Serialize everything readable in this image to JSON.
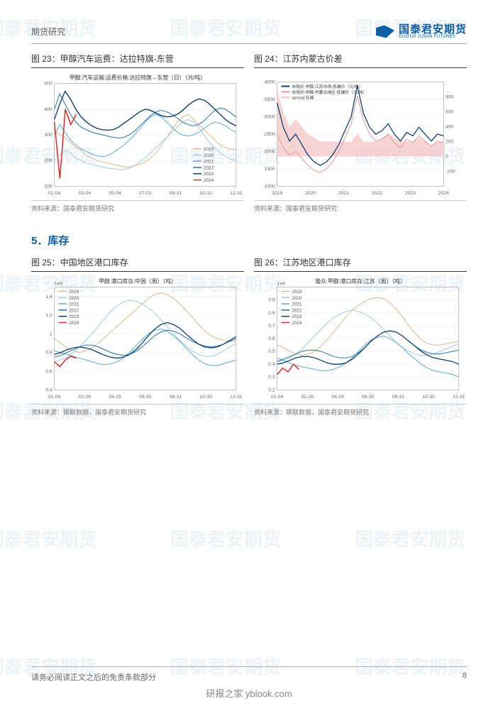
{
  "header": {
    "label": "期货研究",
    "brand_cn": "国泰君安期货",
    "brand_en": "GUOTAI JUNAN FUTURES"
  },
  "section_heading": "5．库存",
  "footer": {
    "disclaimer": "请务必阅读正文之后的免责条款部分",
    "page_num": "8",
    "tag": "研报之家 yblook.com"
  },
  "watermark_text": "国泰君安期货",
  "charts": {
    "c23": {
      "caption": "图 23：甲醇汽车运费：达拉特旗-东营",
      "subtitle": "甲醇:汽车运输:运费价格:达拉特旗→东营（日）（元/吨）",
      "source": "资料来源：国泰君安期货研究",
      "type": "line",
      "background_color": "#ffffff",
      "grid_color": "#e8e8e8",
      "axis_color": "#666",
      "axis_fontsize": 7,
      "title_fontsize": 8,
      "ylim": [
        100,
        500
      ],
      "ytick_step": 100,
      "x_labels": [
        "01-04",
        "03-04",
        "05-04",
        "07-02",
        "08-31",
        "10-31",
        "12-31"
      ],
      "legend": [
        "2019",
        "2020",
        "2021",
        "2022",
        "2023",
        "2024"
      ],
      "legend_colors": [
        "#dcb68c",
        "#a0c8e6",
        "#58a8de",
        "#1f6fb0",
        "#0a3c70",
        "#e03030"
      ],
      "series": [
        {
          "name": "2019",
          "color": "#dcb68c",
          "width": 1,
          "y": [
            320,
            300,
            290,
            270,
            250,
            240,
            220,
            210,
            200,
            195,
            190,
            185,
            180,
            175,
            175,
            180,
            185,
            195,
            210,
            230,
            260,
            290,
            320,
            350,
            370,
            380,
            360,
            340,
            320,
            300,
            280,
            260,
            250,
            245,
            240
          ]
        },
        {
          "name": "2020",
          "color": "#a0c8e6",
          "width": 1,
          "y": [
            200,
            220,
            240,
            230,
            210,
            200,
            190,
            185,
            180,
            175,
            170,
            168,
            165,
            165,
            170,
            180,
            195,
            210,
            230,
            250,
            270,
            290,
            310,
            330,
            350,
            360,
            350,
            330,
            300,
            270,
            250,
            230,
            215,
            205,
            200
          ]
        },
        {
          "name": "2021",
          "color": "#58a8de",
          "width": 1,
          "y": [
            300,
            340,
            310,
            280,
            260,
            245,
            235,
            225,
            218,
            215,
            220,
            230,
            245,
            260,
            280,
            300,
            325,
            350,
            370,
            380,
            370,
            350,
            330,
            310,
            300,
            295,
            300,
            310,
            325,
            340,
            350,
            345,
            335,
            320,
            310
          ]
        },
        {
          "name": "2022",
          "color": "#1f6fb0",
          "width": 1,
          "y": [
            400,
            460,
            420,
            380,
            350,
            330,
            320,
            310,
            305,
            300,
            295,
            290,
            288,
            290,
            300,
            315,
            335,
            355,
            375,
            390,
            395,
            390,
            380,
            365,
            350,
            340,
            335,
            340,
            355,
            375,
            395,
            405,
            400,
            385,
            370
          ]
        },
        {
          "name": "2023",
          "color": "#0a3c70",
          "width": 1.4,
          "y": [
            360,
            420,
            470,
            440,
            400,
            370,
            350,
            335,
            325,
            320,
            318,
            320,
            330,
            345,
            360,
            375,
            390,
            400,
            395,
            385,
            375,
            370,
            372,
            380,
            395,
            415,
            430,
            440,
            435,
            420,
            400,
            380,
            360,
            345,
            335
          ]
        },
        {
          "name": "2024",
          "color": "#e03030",
          "width": 1.6,
          "y": [
            350,
            130,
            400,
            340,
            380
          ]
        }
      ]
    },
    "c24": {
      "caption": "图 24：江苏内蒙古价差",
      "subtitle": "",
      "source": "资料来源：国泰君安期货研究",
      "type": "dual-axis-line-area",
      "background_color": "#ffffff",
      "grid_color": "#e8e8e8",
      "axis_color": "#666",
      "axis_fontsize": 7,
      "ylim_left": [
        1000,
        4000
      ],
      "ytick_left_step": 500,
      "ylim_right": [
        -400,
        1000
      ],
      "ytick_right": [
        -200,
        0,
        200,
        400,
        600,
        800
      ],
      "x_labels": [
        "2019",
        "2020",
        "2021",
        "2022",
        "2023",
        "2024"
      ],
      "legend": [
        {
          "label": "市场价:甲醇:江苏市场:低端价（元/吨）",
          "color": "#0a3c70"
        },
        {
          "label": "市场价:甲醇:内蒙古地区:低端价（元/吨）",
          "color": "#e09a9a"
        },
        {
          "label": "spread:右轴",
          "color": "#f4c2c2"
        }
      ],
      "spread_fill": "#f4c2c2",
      "series_left": [
        {
          "name": "js",
          "color": "#0a3c70",
          "width": 1.3,
          "y": [
            3400,
            2700,
            2300,
            2500,
            2200,
            1900,
            1700,
            1600,
            1700,
            1900,
            2200,
            2600,
            3000,
            3900,
            3100,
            2700,
            2500,
            2600,
            2800,
            2500,
            2300,
            2550,
            2450,
            2700,
            2500,
            2300,
            2500,
            2450
          ]
        },
        {
          "name": "nm",
          "color": "#e09a9a",
          "width": 1,
          "y": [
            2500,
            2100,
            1900,
            2000,
            1800,
            1600,
            1450,
            1400,
            1500,
            1700,
            2000,
            2400,
            2800,
            3600,
            2900,
            2500,
            2300,
            2350,
            2500,
            2250,
            2100,
            2350,
            2250,
            2450,
            2300,
            2150,
            2300,
            2250
          ]
        }
      ],
      "spread_y": [
        900,
        600,
        400,
        500,
        400,
        300,
        250,
        200,
        200,
        200,
        200,
        200,
        200,
        300,
        200,
        200,
        200,
        250,
        300,
        250,
        200,
        200,
        200,
        250,
        200,
        150,
        200,
        200
      ]
    },
    "c25": {
      "caption": "图 25：中国地区港口库存",
      "subtitle": "甲醇:港口库存:中国（周）（吨）",
      "source": "资料来源：钢联数据，国泰君安期货研究",
      "type": "line",
      "background_color": "#ffffff",
      "grid_color": "#e8e8e8",
      "axis_color": "#666",
      "axis_fontsize": 7,
      "scale_label": "1e6",
      "ylim": [
        0.4,
        1.5
      ],
      "yticks": [
        0.4,
        0.6,
        0.8,
        1.0,
        1.2,
        1.4
      ],
      "x_labels": [
        "01-04",
        "02-26",
        "04-29",
        "06-30",
        "08-31",
        "10-30",
        "12-31"
      ],
      "legend": [
        "2019",
        "2020",
        "2021",
        "2022",
        "2023",
        "2024"
      ],
      "legend_colors": [
        "#dcb68c",
        "#a0c8e6",
        "#58a8de",
        "#1f6fb0",
        "#0a3c70",
        "#e03030"
      ],
      "series": [
        {
          "name": "2019",
          "color": "#dcb68c",
          "width": 1,
          "y": [
            0.95,
            0.9,
            0.85,
            0.82,
            0.8,
            0.82,
            0.85,
            0.9,
            0.96,
            1.02,
            1.08,
            1.14,
            1.2,
            1.26,
            1.32,
            1.38,
            1.42,
            1.44,
            1.42,
            1.38,
            1.32,
            1.25,
            1.18,
            1.1,
            1.03,
            0.98,
            0.95,
            0.93,
            0.92,
            0.92
          ]
        },
        {
          "name": "2020",
          "color": "#a0c8e6",
          "width": 1,
          "y": [
            0.7,
            0.72,
            0.75,
            0.8,
            0.86,
            0.93,
            1.0,
            1.08,
            1.16,
            1.24,
            1.3,
            1.34,
            1.36,
            1.35,
            1.32,
            1.28,
            1.22,
            1.15,
            1.08,
            1.0,
            0.93,
            0.87,
            0.82,
            0.78,
            0.76,
            0.76,
            0.78,
            0.82,
            0.86,
            0.9
          ]
        },
        {
          "name": "2021",
          "color": "#58a8de",
          "width": 1,
          "y": [
            0.82,
            0.8,
            0.78,
            0.76,
            0.74,
            0.72,
            0.7,
            0.68,
            0.67,
            0.68,
            0.7,
            0.74,
            0.8,
            0.87,
            0.94,
            1.0,
            1.04,
            1.05,
            1.03,
            0.98,
            0.92,
            0.85,
            0.78,
            0.72,
            0.68,
            0.66,
            0.66,
            0.68,
            0.7,
            0.72
          ]
        },
        {
          "name": "2022",
          "color": "#1f6fb0",
          "width": 1,
          "y": [
            0.75,
            0.77,
            0.8,
            0.83,
            0.86,
            0.88,
            0.88,
            0.86,
            0.83,
            0.8,
            0.78,
            0.77,
            0.78,
            0.81,
            0.86,
            0.92,
            0.98,
            1.02,
            1.04,
            1.03,
            1.0,
            0.96,
            0.92,
            0.89,
            0.87,
            0.86,
            0.87,
            0.89,
            0.92,
            0.95
          ]
        },
        {
          "name": "2023",
          "color": "#0a3c70",
          "width": 1.3,
          "y": [
            0.78,
            0.8,
            0.83,
            0.85,
            0.86,
            0.85,
            0.83,
            0.8,
            0.77,
            0.75,
            0.74,
            0.75,
            0.78,
            0.83,
            0.9,
            0.98,
            1.05,
            1.1,
            1.12,
            1.1,
            1.06,
            1.0,
            0.94,
            0.89,
            0.86,
            0.85,
            0.86,
            0.89,
            0.93,
            0.97
          ]
        },
        {
          "name": "2024",
          "color": "#e03030",
          "width": 1.6,
          "y": [
            0.7,
            0.65,
            0.72,
            0.76,
            0.74
          ]
        }
      ]
    },
    "c26": {
      "caption": "图 26：江苏地区港口库存",
      "subtitle": "隆众:甲醇:港口库存:江苏（周）（吨）",
      "source": "资料来源：钢联数据，国泰君安期货研究",
      "type": "line",
      "background_color": "#ffffff",
      "grid_color": "#e8e8e8",
      "axis_color": "#666",
      "axis_fontsize": 7,
      "scale_label": "1e6",
      "ylim": [
        0.2,
        1.0
      ],
      "yticks": [
        0.2,
        0.3,
        0.4,
        0.5,
        0.6,
        0.7,
        0.8,
        0.9
      ],
      "x_labels": [
        "01-04",
        "02-26",
        "04-29",
        "06-30",
        "08-31",
        "10-30",
        "12-31"
      ],
      "legend": [
        "2019",
        "2020",
        "2021",
        "2022",
        "2023",
        "2024"
      ],
      "legend_colors": [
        "#dcb68c",
        "#a0c8e6",
        "#58a8de",
        "#1f6fb0",
        "#0a3c70",
        "#e03030"
      ],
      "series": [
        {
          "name": "2019",
          "color": "#dcb68c",
          "width": 1,
          "y": [
            0.55,
            0.53,
            0.5,
            0.48,
            0.47,
            0.48,
            0.5,
            0.54,
            0.59,
            0.65,
            0.71,
            0.77,
            0.82,
            0.86,
            0.89,
            0.91,
            0.92,
            0.91,
            0.88,
            0.83,
            0.77,
            0.7,
            0.64,
            0.59,
            0.56,
            0.55,
            0.55,
            0.56,
            0.57,
            0.58
          ]
        },
        {
          "name": "2020",
          "color": "#a0c8e6",
          "width": 1,
          "y": [
            0.42,
            0.43,
            0.45,
            0.48,
            0.52,
            0.57,
            0.62,
            0.67,
            0.72,
            0.76,
            0.79,
            0.81,
            0.82,
            0.81,
            0.79,
            0.76,
            0.72,
            0.67,
            0.62,
            0.57,
            0.53,
            0.5,
            0.48,
            0.47,
            0.47,
            0.48,
            0.5,
            0.52,
            0.54,
            0.56
          ]
        },
        {
          "name": "2021",
          "color": "#58a8de",
          "width": 1,
          "y": [
            0.45,
            0.43,
            0.41,
            0.39,
            0.38,
            0.37,
            0.36,
            0.35,
            0.35,
            0.36,
            0.38,
            0.41,
            0.45,
            0.5,
            0.55,
            0.59,
            0.61,
            0.62,
            0.6,
            0.57,
            0.53,
            0.48,
            0.44,
            0.4,
            0.37,
            0.35,
            0.34,
            0.33,
            0.32,
            0.3
          ]
        },
        {
          "name": "2022",
          "color": "#1f6fb0",
          "width": 1,
          "y": [
            0.42,
            0.44,
            0.46,
            0.48,
            0.5,
            0.51,
            0.51,
            0.5,
            0.48,
            0.46,
            0.45,
            0.45,
            0.46,
            0.49,
            0.53,
            0.58,
            0.62,
            0.65,
            0.66,
            0.65,
            0.62,
            0.58,
            0.54,
            0.51,
            0.49,
            0.48,
            0.48,
            0.49,
            0.5,
            0.51
          ]
        },
        {
          "name": "2023",
          "color": "#0a3c70",
          "width": 1.3,
          "y": [
            0.4,
            0.41,
            0.43,
            0.45,
            0.46,
            0.46,
            0.45,
            0.43,
            0.41,
            0.4,
            0.4,
            0.41,
            0.44,
            0.48,
            0.53,
            0.58,
            0.62,
            0.65,
            0.66,
            0.65,
            0.62,
            0.58,
            0.54,
            0.5,
            0.47,
            0.45,
            0.44,
            0.43,
            0.42,
            0.4
          ]
        },
        {
          "name": "2024",
          "color": "#e03030",
          "width": 1.6,
          "y": [
            0.32,
            0.37,
            0.34,
            0.4,
            0.36
          ]
        }
      ]
    }
  }
}
